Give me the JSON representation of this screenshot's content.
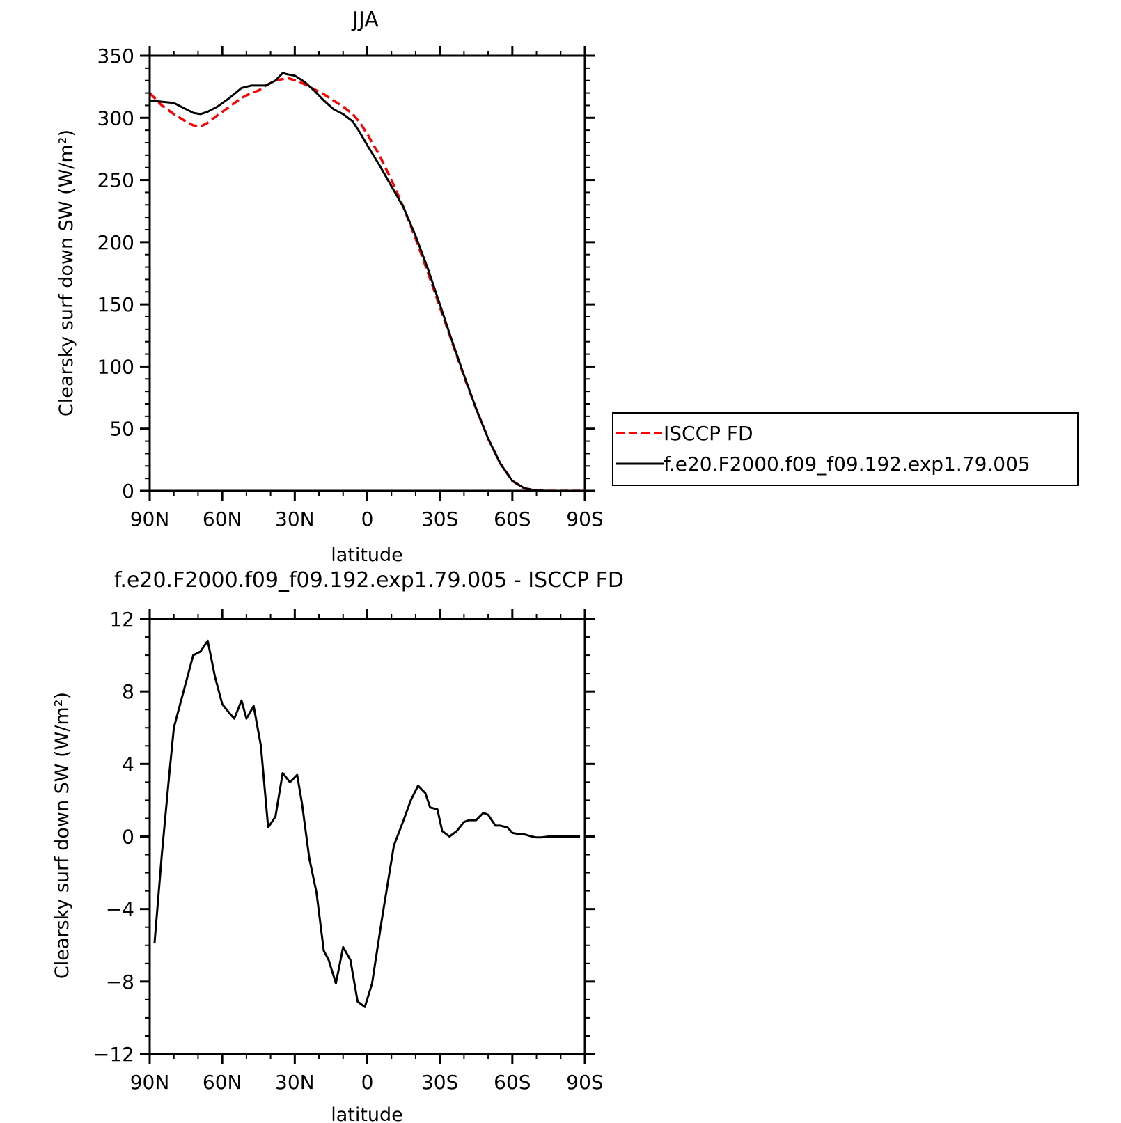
{
  "chart_data": [
    {
      "type": "line",
      "title": "JJA",
      "xlabel": "latitude",
      "ylabel": "Clearsky surf down SW (W/m²)",
      "xlim": [
        90,
        -90
      ],
      "ylim": [
        0,
        350
      ],
      "xticks": [
        90,
        60,
        30,
        0,
        -30,
        -60,
        -90
      ],
      "xtick_labels": [
        "90N",
        "60N",
        "30N",
        "0",
        "30S",
        "60S",
        "90S"
      ],
      "yticks": [
        0,
        50,
        100,
        150,
        200,
        250,
        300,
        350
      ],
      "ytick_labels": [
        "0",
        "50",
        "100",
        "150",
        "200",
        "250",
        "300",
        "350"
      ],
      "legend_position": "right",
      "series": [
        {
          "name": "ISCCP FD",
          "color": "#ff0000",
          "dash": "dashed",
          "x": [
            90,
            85,
            80,
            75,
            72,
            69,
            66,
            62,
            57,
            52,
            48,
            45,
            42,
            38,
            33,
            28,
            23,
            18,
            14,
            10,
            6,
            3,
            0,
            -5,
            -10,
            -15,
            -20,
            -25,
            -30,
            -35,
            -40,
            -45,
            -50,
            -55,
            -60,
            -65,
            -70,
            -75,
            -80,
            -85,
            -88
          ],
          "y": [
            320,
            310,
            303,
            297,
            294,
            293,
            296,
            302,
            309,
            316,
            320,
            322,
            326,
            330,
            332,
            329,
            324,
            319,
            314,
            309,
            303,
            296,
            287,
            270,
            250,
            228,
            203,
            176,
            148,
            120,
            92,
            66,
            42,
            22,
            8,
            2,
            0.3,
            0,
            0,
            0,
            0
          ]
        },
        {
          "name": "f.e20.F2000.f09_f09.192.exp1.79.005",
          "color": "#000000",
          "dash": "solid",
          "x": [
            90,
            85,
            80,
            75,
            72,
            69,
            66,
            62,
            57,
            52,
            48,
            45,
            42,
            38,
            35,
            33,
            30,
            26,
            22,
            18,
            14,
            10,
            6,
            3,
            0,
            -5,
            -10,
            -15,
            -20,
            -25,
            -30,
            -35,
            -40,
            -45,
            -50,
            -55,
            -60,
            -65,
            -70,
            -75,
            -80,
            -85,
            -88
          ],
          "y": [
            314,
            313,
            312,
            307,
            304,
            303,
            305,
            309,
            316,
            324,
            326,
            326,
            326,
            330,
            336,
            335,
            334,
            329,
            322,
            314,
            307,
            303,
            297,
            288,
            278,
            262,
            245,
            228,
            205,
            179,
            150,
            121,
            93,
            66,
            42,
            22,
            8,
            2,
            0.3,
            0,
            0,
            0,
            0
          ]
        }
      ]
    },
    {
      "type": "line",
      "title": "f.e20.F2000.f09_f09.192.exp1.79.005 - ISCCP FD",
      "xlabel": "latitude",
      "ylabel": "Clearsky surf down SW (W/m²)",
      "xlim": [
        90,
        -90
      ],
      "ylim": [
        -12,
        12
      ],
      "xticks": [
        90,
        60,
        30,
        0,
        -30,
        -60,
        -90
      ],
      "xtick_labels": [
        "90N",
        "60N",
        "30N",
        "0",
        "30S",
        "60S",
        "90S"
      ],
      "yticks": [
        -12,
        -8,
        -4,
        0,
        4,
        8,
        12
      ],
      "ytick_labels": [
        "−12",
        "−8",
        "−4",
        "0",
        "4",
        "8",
        "12"
      ],
      "series": [
        {
          "color": "#000000",
          "dash": "solid",
          "x": [
            88,
            85,
            82,
            80,
            77,
            75,
            72,
            69,
            66,
            63,
            60,
            57,
            55,
            52,
            50,
            47,
            44,
            41,
            38,
            35,
            32,
            29,
            27,
            24,
            21,
            18,
            16,
            13,
            10,
            7,
            4,
            1,
            -2,
            -6,
            -11,
            -15,
            -18,
            -21,
            -24,
            -26,
            -29,
            -31,
            -34,
            -37,
            -40,
            -42,
            -45,
            -48,
            -50,
            -53,
            -55,
            -58,
            -60,
            -62,
            -65,
            -68,
            -70,
            -72,
            -75,
            -78,
            -80,
            -83,
            -86,
            -88
          ],
          "y": [
            -5.9,
            -1,
            3.3,
            6,
            7.5,
            8.5,
            10,
            10.2,
            10.8,
            8.8,
            7.3,
            6.8,
            6.5,
            7.5,
            6.5,
            7.2,
            5,
            0.5,
            1.1,
            3.5,
            3,
            3.4,
            1.8,
            -1.2,
            -3.1,
            -6.3,
            -6.8,
            -8.1,
            -6.1,
            -6.8,
            -9.1,
            -9.4,
            -8.1,
            -4.6,
            -0.5,
            0.9,
            2,
            2.8,
            2.4,
            1.6,
            1.5,
            0.3,
            0,
            0.3,
            0.8,
            0.9,
            0.9,
            1.3,
            1.2,
            0.6,
            0.6,
            0.5,
            0.2,
            0.15,
            0.12,
            0,
            -0.05,
            -0.05,
            0,
            0,
            0,
            0,
            0,
            0
          ]
        }
      ]
    }
  ]
}
